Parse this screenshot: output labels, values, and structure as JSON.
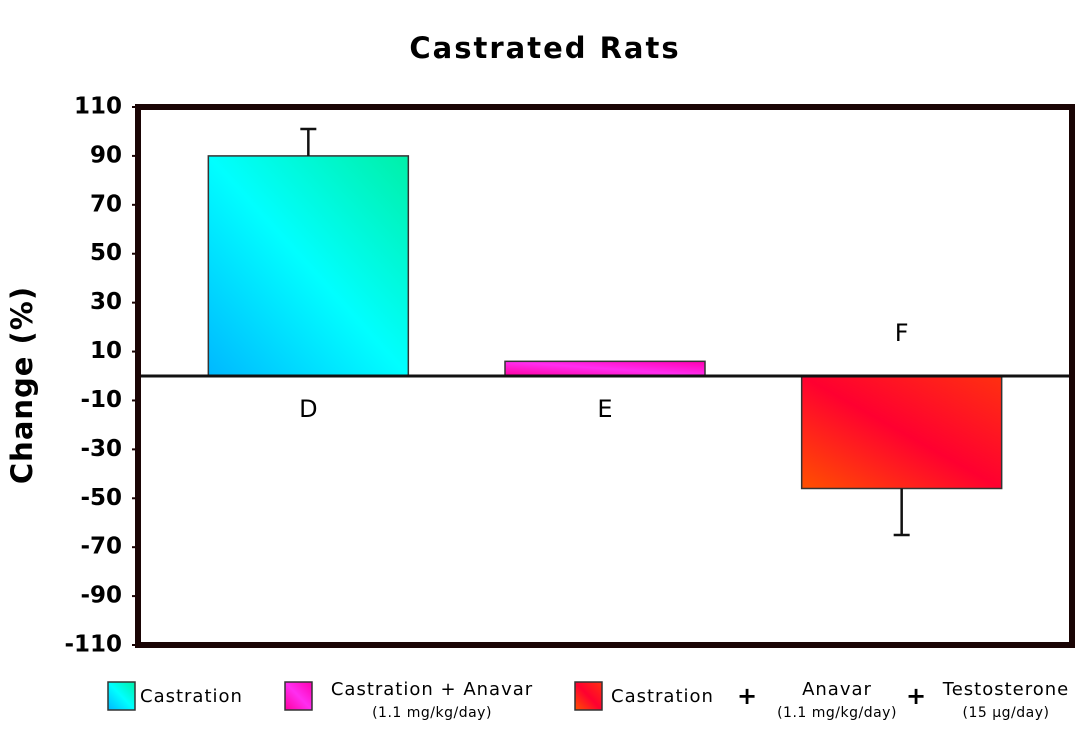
{
  "chart_data": {
    "type": "bar",
    "title": "Castrated Rats",
    "y_label": "Change (%)",
    "categories": [
      "D",
      "E",
      "F"
    ],
    "values": [
      90,
      6,
      -46
    ],
    "errors": [
      11,
      null,
      19
    ],
    "colors": [
      [
        "#00b8ff",
        "#00ffff",
        "#00f0a8"
      ],
      [
        "#ff00a0",
        "#ff2ef0",
        "#ff00b0"
      ],
      [
        "#ff5000",
        "#ff0030",
        "#ff3010"
      ]
    ],
    "ylim": [
      -110,
      110
    ],
    "yticks": [
      110,
      90,
      70,
      50,
      30,
      10,
      -10,
      -30,
      -50,
      -70,
      -90,
      -110
    ],
    "legend": [
      {
        "parts": [
          {
            "text": "Castration"
          }
        ]
      },
      {
        "parts": [
          {
            "text": "Castration + Anavar",
            "sub": "(1.1 mg/kg/day)"
          }
        ]
      },
      {
        "parts": [
          {
            "text": "Castration"
          },
          {
            "text": "+"
          },
          {
            "text": "Anavar",
            "sub": "(1.1 mg/kg/day)"
          },
          {
            "text": "+"
          },
          {
            "text": "Testosterone",
            "sub": "(15 µg/day)"
          }
        ]
      }
    ]
  }
}
